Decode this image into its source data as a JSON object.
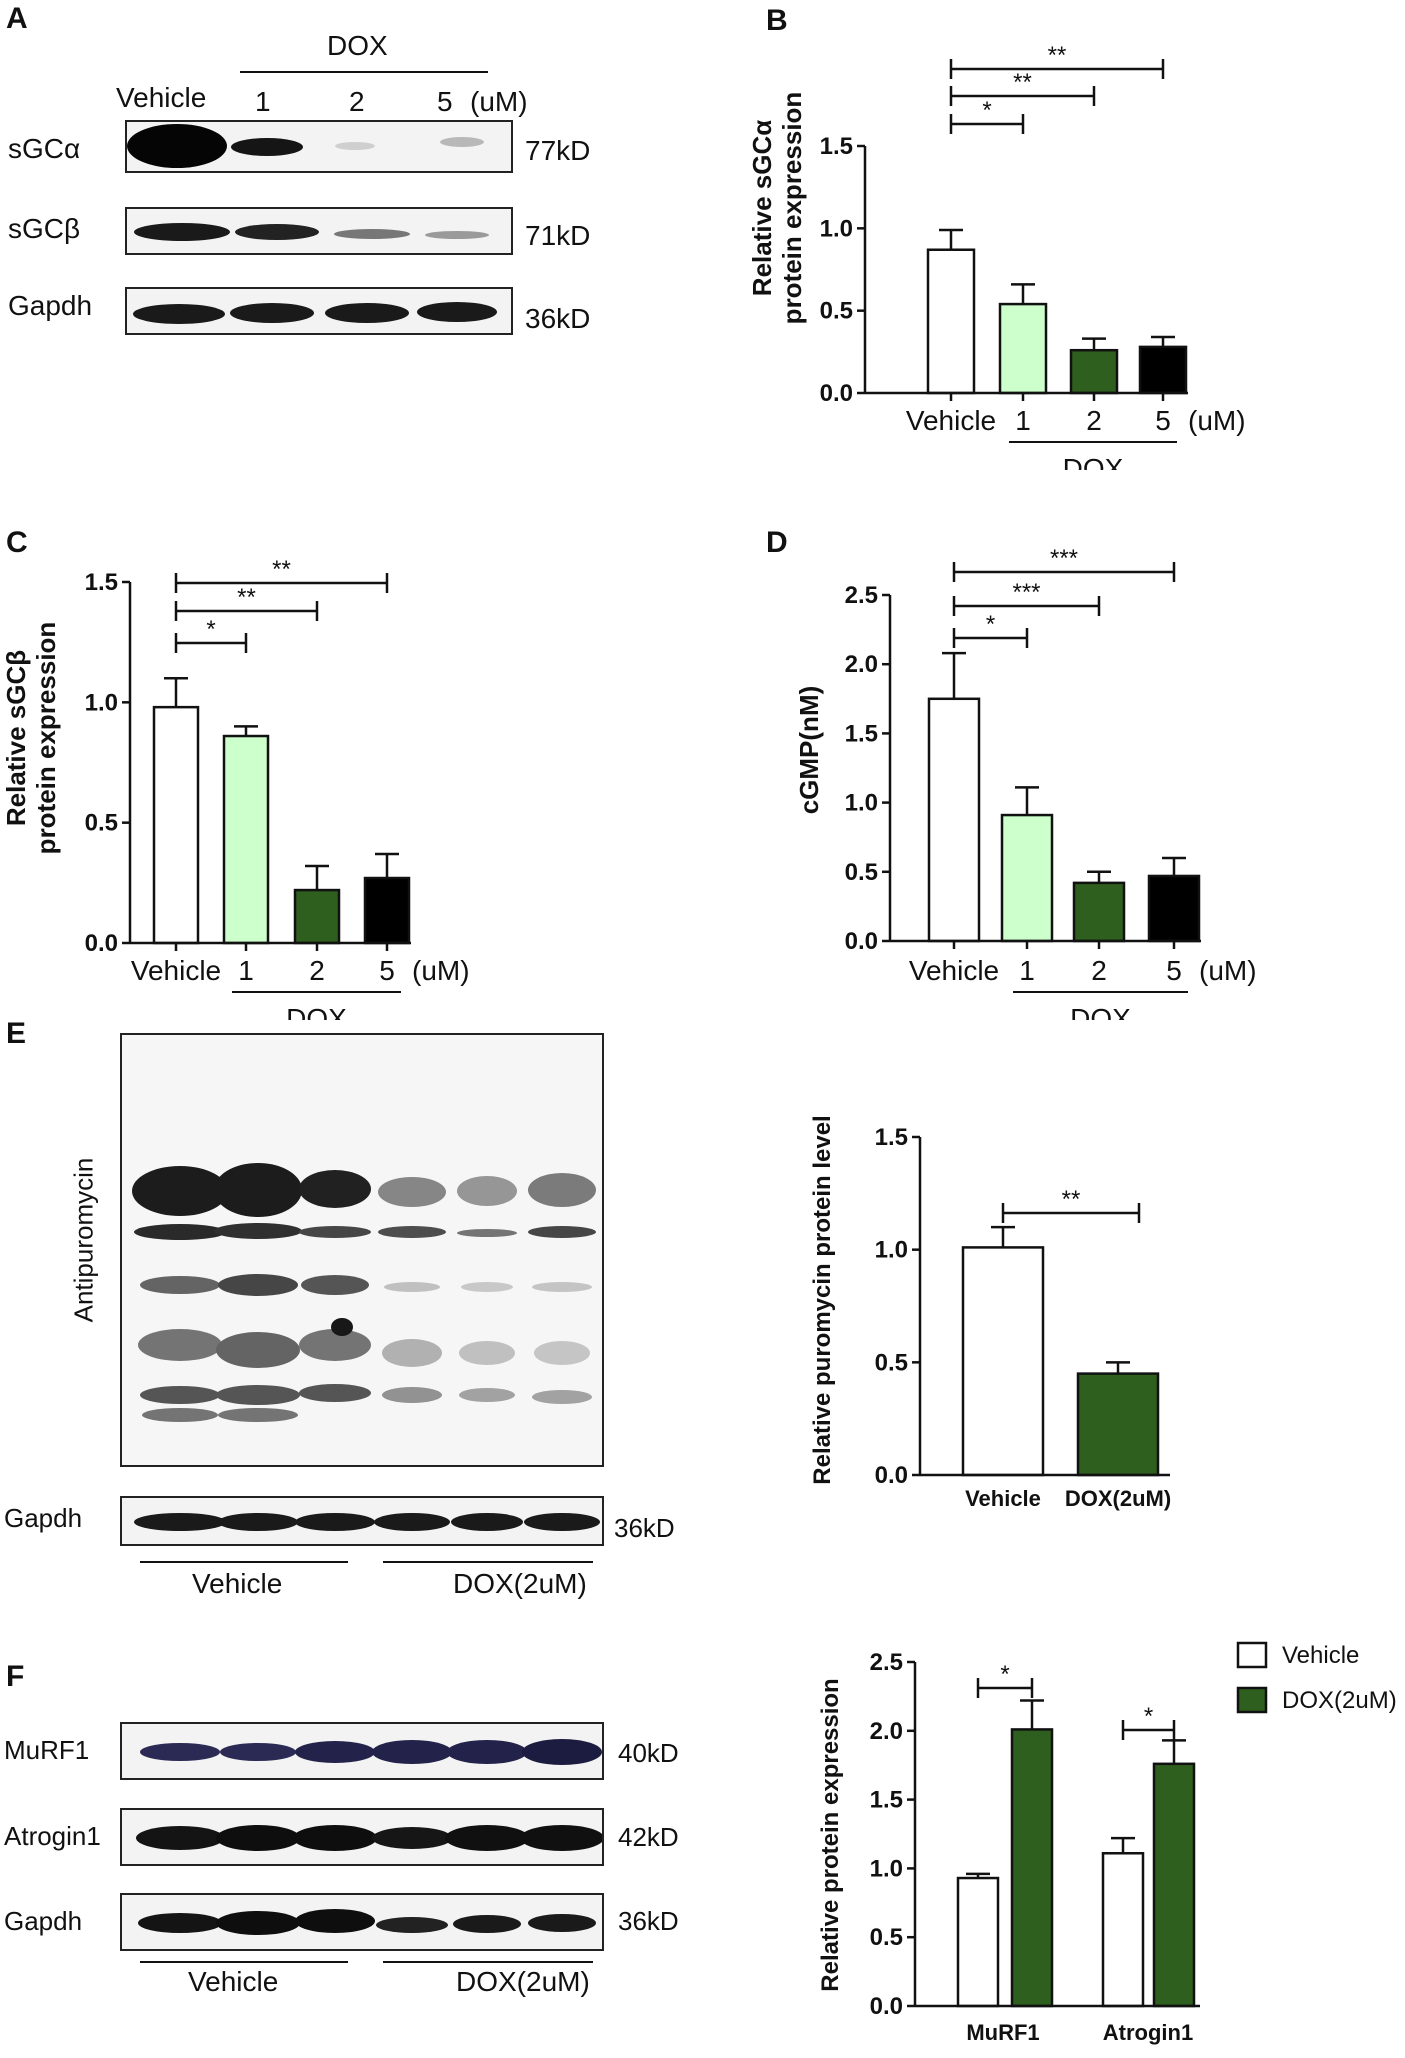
{
  "panels": {
    "A": {
      "letter": "A",
      "treatment_label": "DOX",
      "lane_labels": [
        "Vehicle",
        "1",
        "2",
        "5"
      ],
      "unit": "(uM)",
      "rows": [
        {
          "protein": "sGCα",
          "kd": "77kD"
        },
        {
          "protein": "sGCβ",
          "kd": "71kD"
        },
        {
          "protein": "Gapdh",
          "kd": "36kD"
        }
      ]
    },
    "E": {
      "letter": "E",
      "blot_label": "Antipuromycin",
      "gapdh_label": "Gapdh",
      "gapdh_kd": "36kD",
      "groups": [
        "Vehicle",
        "DOX(2uM)"
      ]
    },
    "F": {
      "letter": "F",
      "rows": [
        {
          "protein": "MuRF1",
          "kd": "40kD"
        },
        {
          "protein": "Atrogin1",
          "kd": "42kD"
        },
        {
          "protein": "Gapdh",
          "kd": "36kD"
        }
      ],
      "groups": [
        "Vehicle",
        "DOX(2uM)"
      ]
    }
  },
  "colors": {
    "vehicle": "#ffffff",
    "dox1": "#ccffcc",
    "dox2": "#2f5f1e",
    "dox5": "#000000",
    "axis": "#111111"
  },
  "chart_data": [
    {
      "id": "B",
      "letter": "B",
      "type": "bar",
      "ylabel": [
        "Relative sGCα",
        "protein expression"
      ],
      "categories": [
        "Vehicle",
        "1",
        "2",
        "5"
      ],
      "unit": "(uM)",
      "group_label": "DOX",
      "values": [
        0.87,
        0.54,
        0.26,
        0.28
      ],
      "errors": [
        0.12,
        0.12,
        0.07,
        0.06
      ],
      "colors": [
        "#ffffff",
        "#ccffcc",
        "#2f5f1e",
        "#000000"
      ],
      "ylim": [
        0,
        1.5
      ],
      "yticks": [
        "0.0",
        "0.5",
        "1.0",
        "1.5"
      ],
      "significance": [
        {
          "from": 0,
          "to": 1,
          "label": "*"
        },
        {
          "from": 0,
          "to": 2,
          "label": "**"
        },
        {
          "from": 0,
          "to": 3,
          "label": "**"
        }
      ]
    },
    {
      "id": "C",
      "letter": "C",
      "type": "bar",
      "ylabel": [
        "Relative sGCβ",
        "protein expression"
      ],
      "categories": [
        "Vehicle",
        "1",
        "2",
        "5"
      ],
      "unit": "(uM)",
      "group_label": "DOX",
      "values": [
        0.98,
        0.86,
        0.22,
        0.27
      ],
      "errors": [
        0.12,
        0.04,
        0.1,
        0.1
      ],
      "colors": [
        "#ffffff",
        "#ccffcc",
        "#2f5f1e",
        "#000000"
      ],
      "ylim": [
        0,
        1.5
      ],
      "yticks": [
        "0.0",
        "0.5",
        "1.0",
        "1.5"
      ],
      "significance": [
        {
          "from": 0,
          "to": 1,
          "label": "*"
        },
        {
          "from": 0,
          "to": 2,
          "label": "**"
        },
        {
          "from": 0,
          "to": 3,
          "label": "**"
        }
      ]
    },
    {
      "id": "D",
      "letter": "D",
      "type": "bar",
      "ylabel": [
        "cGMP(nM)"
      ],
      "categories": [
        "Vehicle",
        "1",
        "2",
        "5"
      ],
      "unit": "(uM)",
      "group_label": "DOX",
      "values": [
        1.75,
        0.91,
        0.42,
        0.47
      ],
      "errors": [
        0.33,
        0.2,
        0.08,
        0.13
      ],
      "colors": [
        "#ffffff",
        "#ccffcc",
        "#2f5f1e",
        "#000000"
      ],
      "ylim": [
        0,
        2.5
      ],
      "yticks": [
        "0.0",
        "0.5",
        "1.0",
        "1.5",
        "2.0",
        "2.5"
      ],
      "significance": [
        {
          "from": 0,
          "to": 1,
          "label": "*"
        },
        {
          "from": 0,
          "to": 2,
          "label": "***"
        },
        {
          "from": 0,
          "to": 3,
          "label": "***"
        }
      ]
    },
    {
      "id": "E",
      "type": "bar",
      "ylabel": [
        "Relative puromycin protein level"
      ],
      "categories": [
        "Vehicle",
        "DOX(2uM)"
      ],
      "values": [
        1.01,
        0.45
      ],
      "errors": [
        0.09,
        0.05
      ],
      "colors": [
        "#ffffff",
        "#2f5f1e"
      ],
      "ylim": [
        0,
        1.5
      ],
      "yticks": [
        "0.0",
        "0.5",
        "1.0",
        "1.5"
      ],
      "significance": [
        {
          "from": 0,
          "to": 1,
          "label": "**"
        }
      ]
    },
    {
      "id": "F",
      "type": "bar",
      "ylabel": [
        "Relative protein expression"
      ],
      "categories": [
        "MuRF1",
        "Atrogin1"
      ],
      "series": [
        {
          "name": "Vehicle",
          "values": [
            0.93,
            1.11
          ],
          "errors": [
            0.03,
            0.11
          ],
          "color": "#ffffff"
        },
        {
          "name": "DOX(2uM)",
          "values": [
            2.01,
            1.76
          ],
          "errors": [
            0.21,
            0.17
          ],
          "color": "#2f5f1e"
        }
      ],
      "ylim": [
        0,
        2.5
      ],
      "yticks": [
        "0.0",
        "0.5",
        "1.0",
        "1.5",
        "2.0",
        "2.5"
      ],
      "significance": [
        {
          "category": 0,
          "label": "*"
        },
        {
          "category": 1,
          "label": "*"
        }
      ],
      "legend_position": "top-right"
    }
  ]
}
